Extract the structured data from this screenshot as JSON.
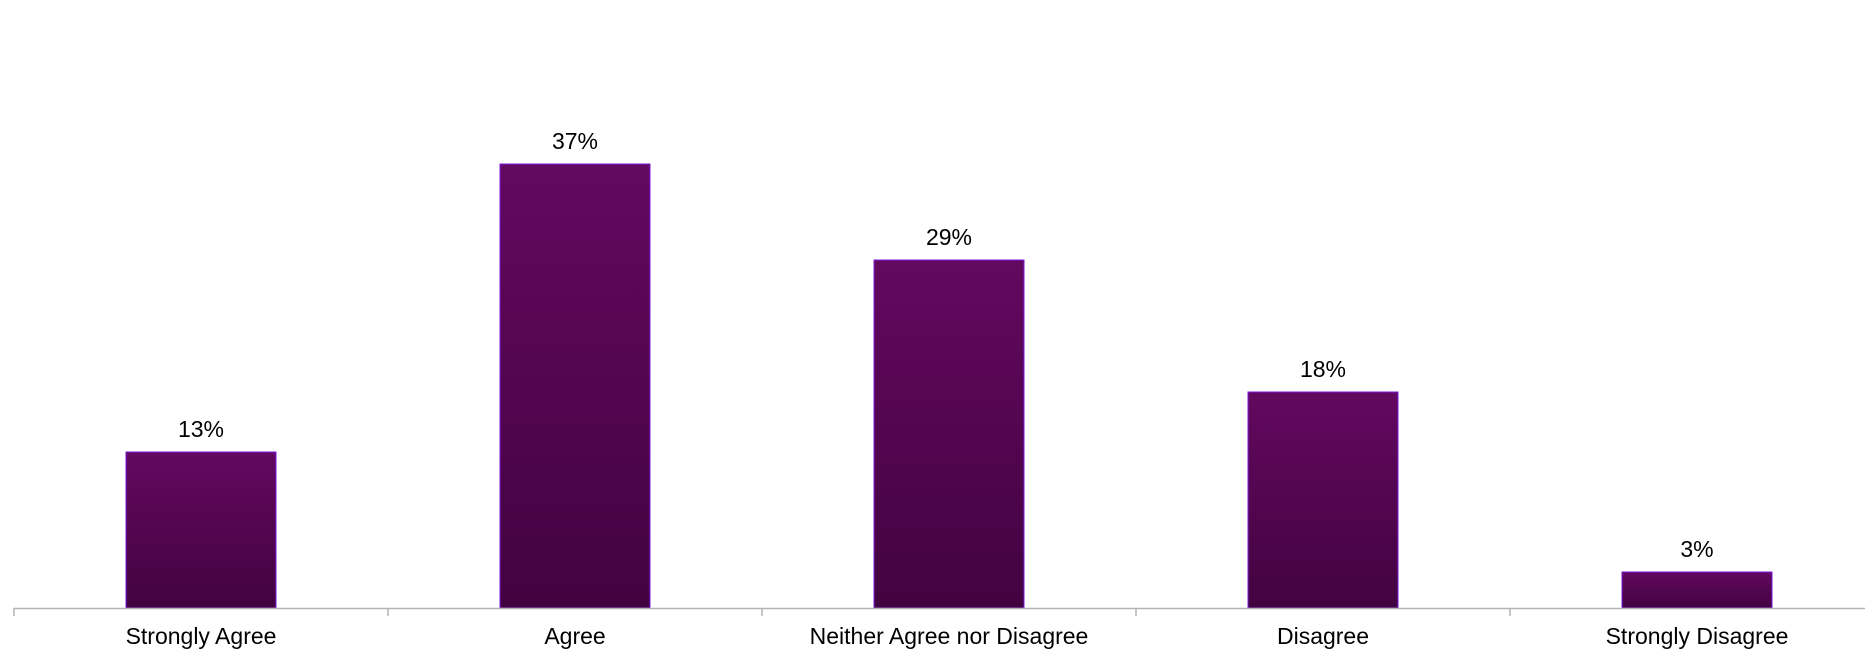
{
  "chart_data": {
    "type": "bar",
    "title": "",
    "xlabel": "",
    "ylabel": "",
    "categories": [
      "Strongly Agree",
      "Agree",
      "Neither Agree nor Disagree",
      "Disagree",
      "Strongly Disagree"
    ],
    "values": [
      13,
      37,
      29,
      18,
      3
    ],
    "data_labels": [
      "13%",
      "37%",
      "29%",
      "18%",
      "3%"
    ],
    "value_unit": "%",
    "ylim": [
      0,
      40
    ],
    "grid": false,
    "legend": "none",
    "y_axis_visible": false
  },
  "colors": {
    "bar_top": "#63085f",
    "bar_bottom": "#420340",
    "bar_edge": "#7a1ae0",
    "axis": "#b3b3b3",
    "text": "#000000"
  }
}
